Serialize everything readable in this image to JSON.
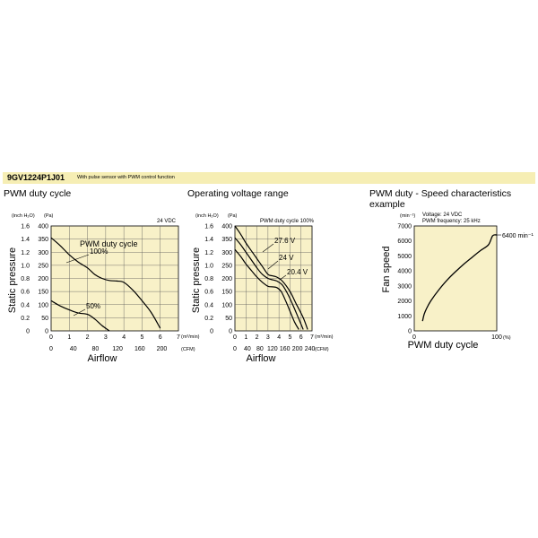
{
  "model": {
    "code": "9GV1224P1J01",
    "description": "With pulse sensor with PWM control function"
  },
  "colors": {
    "header_bg": "#f6eeb4",
    "plot_bg": "#f8f1c8",
    "grid": "#555555",
    "curve": "#000000"
  },
  "chart_data": [
    {
      "type": "line",
      "title": "PWM duty cycle",
      "condition": "24 VDC",
      "xlabel": "Airflow",
      "ylabel": "Static pressure",
      "x_unit": "(m³/min)",
      "x2_unit": "(CFM)",
      "y_unit_left": "(inch H₂O)",
      "y_unit_right": "(Pa)",
      "xlim": [
        0,
        7
      ],
      "ylim": [
        0,
        400
      ],
      "x_ticks": [
        "0",
        "1",
        "2",
        "3",
        "4",
        "5",
        "6",
        "7"
      ],
      "x2_ticks": [
        "0",
        "40",
        "80",
        "120",
        "160",
        "200"
      ],
      "y_ticks_pa": [
        "0",
        "50",
        "100",
        "150",
        "200",
        "250",
        "300",
        "350",
        "400"
      ],
      "y_ticks_inch": [
        "0",
        "0.2",
        "0.4",
        "0.6",
        "0.8",
        "1.0",
        "1.2",
        "1.4",
        "1.6"
      ],
      "grid": true,
      "curve_caption": "PWM duty cycle",
      "series": [
        {
          "name": "100%",
          "x": [
            0,
            0.5,
            1,
            1.5,
            2,
            2.4,
            2.8,
            3.2,
            3.6,
            4,
            4.5,
            5,
            5.5,
            6
          ],
          "y": [
            355,
            325,
            290,
            262,
            240,
            215,
            200,
            192,
            190,
            185,
            155,
            115,
            70,
            10
          ]
        },
        {
          "name": "50%",
          "x": [
            0,
            0.5,
            1,
            1.5,
            2,
            2.4,
            2.8,
            3.2
          ],
          "y": [
            115,
            95,
            80,
            68,
            63,
            45,
            20,
            0
          ]
        }
      ]
    },
    {
      "type": "line",
      "title": "Operating voltage range",
      "condition": "PWM duty cycle 100%",
      "xlabel": "Airflow",
      "ylabel": "Static pressure",
      "x_unit": "(m³/min)",
      "x2_unit": "(CFM)",
      "y_unit_left": "(inch H₂O)",
      "y_unit_right": "(Pa)",
      "xlim": [
        0,
        7
      ],
      "ylim": [
        0,
        400
      ],
      "x_ticks": [
        "0",
        "1",
        "2",
        "3",
        "4",
        "5",
        "6",
        "7"
      ],
      "x2_ticks": [
        "0",
        "40",
        "80",
        "120",
        "160",
        "200",
        "240"
      ],
      "y_ticks_pa": [
        "0",
        "50",
        "100",
        "150",
        "200",
        "250",
        "300",
        "350",
        "400"
      ],
      "y_ticks_inch": [
        "0",
        "0.2",
        "0.4",
        "0.6",
        "0.8",
        "1.0",
        "1.2",
        "1.4",
        "1.6"
      ],
      "grid": true,
      "series": [
        {
          "name": "27.6 V",
          "x": [
            0,
            0.5,
            1,
            1.5,
            2,
            2.5,
            3,
            3.4,
            3.8,
            4.3,
            5,
            5.6,
            6.2,
            6.6
          ],
          "y": [
            400,
            370,
            335,
            305,
            275,
            245,
            215,
            210,
            205,
            190,
            150,
            100,
            50,
            5
          ]
        },
        {
          "name": "24 V",
          "x": [
            0,
            0.5,
            1,
            1.5,
            2,
            2.5,
            3,
            3.4,
            3.8,
            4.3,
            4.8,
            5.3,
            5.8,
            6.2
          ],
          "y": [
            355,
            330,
            300,
            270,
            240,
            215,
            200,
            195,
            190,
            175,
            140,
            95,
            45,
            5
          ]
        },
        {
          "name": "20.4 V",
          "x": [
            0,
            0.5,
            1,
            1.5,
            2,
            2.5,
            3,
            3.4,
            3.8,
            4.2,
            4.6,
            5,
            5.4,
            5.8
          ],
          "y": [
            310,
            285,
            255,
            230,
            205,
            185,
            170,
            168,
            165,
            150,
            115,
            75,
            35,
            5
          ]
        }
      ]
    },
    {
      "type": "line",
      "title": "PWM duty - Speed characteristics example",
      "annotations": [
        "Voltage: 24 VDC",
        "PWM frequency: 25 kHz"
      ],
      "peak_label": "6400 min⁻¹",
      "xlabel": "PWM duty cycle",
      "ylabel": "Fan speed",
      "x_unit": "(%)",
      "y_unit": "(min⁻¹)",
      "xlim": [
        0,
        100
      ],
      "ylim": [
        0,
        7000
      ],
      "x_ticks": [
        "0",
        "100"
      ],
      "y_ticks": [
        "0",
        "1000",
        "2000",
        "3000",
        "4000",
        "5000",
        "6000",
        "7000"
      ],
      "grid": false,
      "series": [
        {
          "name": "",
          "x": [
            10,
            12,
            15,
            20,
            30,
            40,
            50,
            60,
            70,
            80,
            90,
            95,
            100
          ],
          "y": [
            650,
            1100,
            1500,
            2000,
            2750,
            3400,
            3950,
            4450,
            4900,
            5350,
            5750,
            6350,
            6400
          ]
        }
      ]
    }
  ]
}
